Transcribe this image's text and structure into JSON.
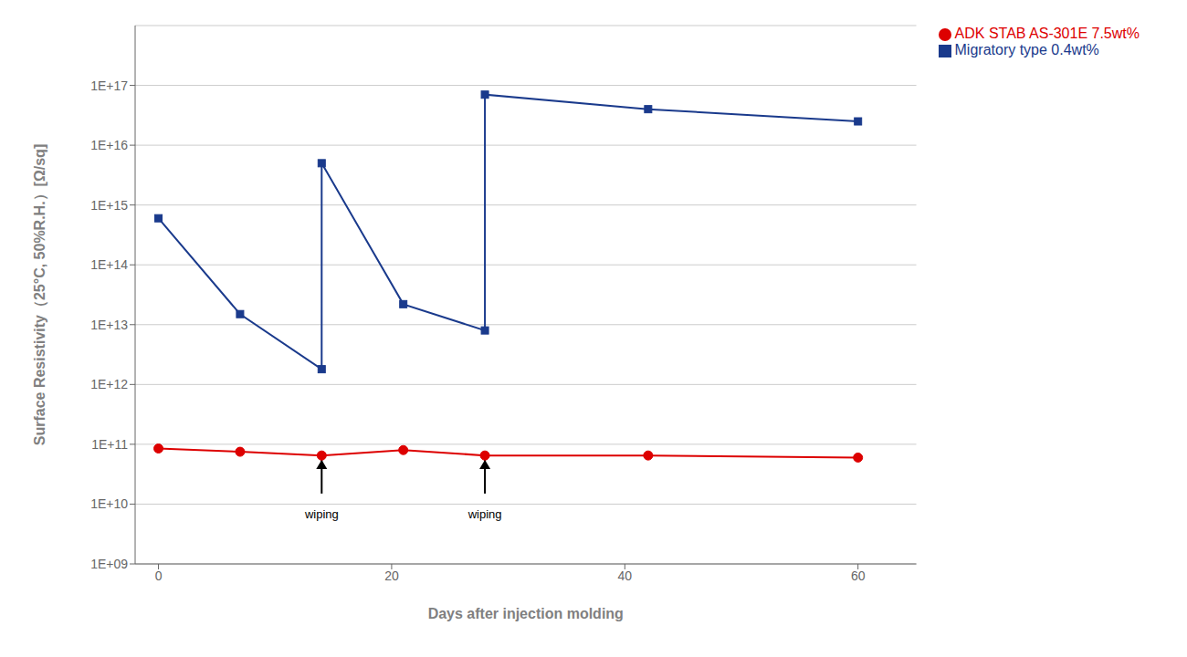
{
  "chart_data": {
    "type": "line",
    "x_label": "Days after injection molding",
    "y_label": "Surface Resistivity（25°C, 50%R.H.）[Ω/sq]",
    "log": "y",
    "grid": "y",
    "legend": "right",
    "xlim": [
      -2,
      65
    ],
    "xticks": [
      0,
      20,
      40,
      60
    ],
    "ylim": [
      1000000000.0,
      1e+18
    ],
    "yticks": [
      {
        "value": 1000000000.0,
        "label": "1E+09"
      },
      {
        "value": 10000000000.0,
        "label": "1E+10"
      },
      {
        "value": 100000000000.0,
        "label": "1E+11"
      },
      {
        "value": 1000000000000.0,
        "label": "1E+12"
      },
      {
        "value": 10000000000000.0,
        "label": "1E+13"
      },
      {
        "value": 100000000000000.0,
        "label": "1E+14"
      },
      {
        "value": 1000000000000000.0,
        "label": "1E+15"
      },
      {
        "value": 1e+16,
        "label": "1E+16"
      },
      {
        "value": 1e+17,
        "label": "1E+17"
      }
    ],
    "series": [
      {
        "name": "Migratory type 0.4wt%",
        "color": "#1a3a8c",
        "marker": "square",
        "x": [
          0,
          7,
          14,
          14,
          21,
          28,
          28,
          42,
          60
        ],
        "values": [
          600000000000000.0,
          15000000000000.0,
          1800000000000.0,
          5000000000000000.0,
          22000000000000.0,
          8000000000000.0,
          7e+16,
          4e+16,
          2.5e+16
        ]
      },
      {
        "name": "ADK STAB AS-301E 7.5wt%",
        "color": "#dd0000",
        "marker": "circle",
        "x": [
          0,
          7,
          14,
          21,
          28,
          42,
          60
        ],
        "values": [
          85000000000.0,
          75000000000.0,
          65000000000.0,
          80000000000.0,
          65000000000.0,
          65000000000.0,
          60000000000.0
        ]
      }
    ],
    "annotations": [
      {
        "text": "wiping",
        "x": 14,
        "y": 8000000000.0,
        "arrow_from": 15000000000.0,
        "arrow_to": 55000000000.0
      },
      {
        "text": "wiping",
        "x": 28,
        "y": 8000000000.0,
        "arrow_from": 15000000000.0,
        "arrow_to": 55000000000.0
      }
    ]
  }
}
